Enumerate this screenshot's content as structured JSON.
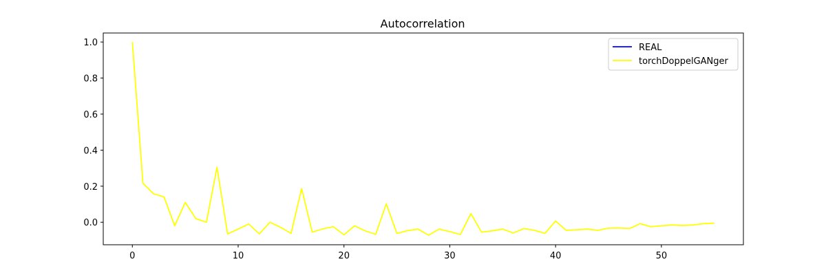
{
  "chart_data": {
    "type": "line",
    "title": "Autocorrelation",
    "xlabel": "",
    "ylabel": "",
    "xlim": [
      -2.75,
      57.75
    ],
    "ylim": [
      -0.125,
      1.05
    ],
    "x_ticks": [
      0,
      10,
      20,
      30,
      40,
      50
    ],
    "y_ticks": [
      0.0,
      0.2,
      0.4,
      0.6,
      0.8,
      1.0
    ],
    "grid": false,
    "legend_position": "top-right",
    "series": [
      {
        "name": "REAL",
        "color": "#0000ff",
        "x": [],
        "y": []
      },
      {
        "name": "torchDoppelGANger",
        "color": "#ffff00",
        "x": [
          0,
          1,
          2,
          3,
          4,
          5,
          6,
          7,
          8,
          9,
          10,
          11,
          12,
          13,
          14,
          15,
          16,
          17,
          18,
          19,
          20,
          21,
          22,
          23,
          24,
          25,
          26,
          27,
          28,
          29,
          30,
          31,
          32,
          33,
          34,
          35,
          36,
          37,
          38,
          39,
          40,
          41,
          42,
          43,
          44,
          45,
          46,
          47,
          48,
          49,
          50,
          51,
          52,
          53,
          54,
          55
        ],
        "y": [
          1.0,
          0.217,
          0.158,
          0.14,
          -0.02,
          0.11,
          0.02,
          0.0,
          0.305,
          -0.065,
          -0.038,
          -0.01,
          -0.065,
          0.0,
          -0.028,
          -0.062,
          0.187,
          -0.055,
          -0.037,
          -0.025,
          -0.07,
          -0.02,
          -0.048,
          -0.067,
          0.102,
          -0.062,
          -0.047,
          -0.038,
          -0.072,
          -0.038,
          -0.052,
          -0.068,
          0.048,
          -0.055,
          -0.048,
          -0.038,
          -0.06,
          -0.035,
          -0.045,
          -0.062,
          0.007,
          -0.045,
          -0.042,
          -0.038,
          -0.045,
          -0.033,
          -0.032,
          -0.035,
          -0.008,
          -0.025,
          -0.02,
          -0.015,
          -0.018,
          -0.015,
          -0.008,
          -0.005
        ]
      }
    ]
  }
}
